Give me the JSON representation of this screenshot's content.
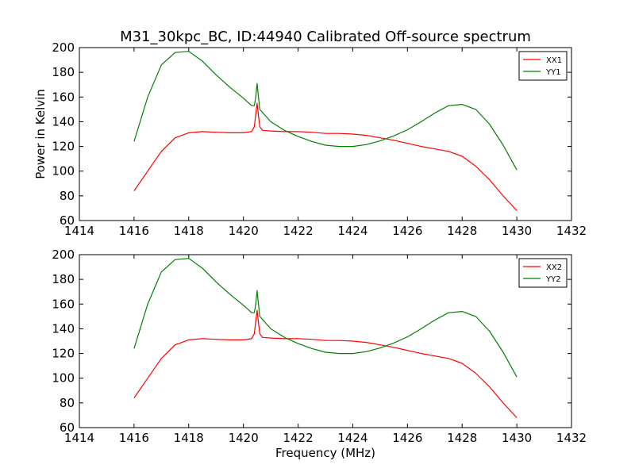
{
  "figure": {
    "title": "M31_30kpc_BC, ID:44940 Calibrated Off-source spectrum"
  },
  "chart_data": [
    {
      "type": "line",
      "title": "M31_30kpc_BC, ID:44940 Calibrated Off-source spectrum",
      "xlabel": "",
      "ylabel": "Power in Kelvin",
      "xlim": [
        1414,
        1432
      ],
      "ylim": [
        60,
        200
      ],
      "xticks": [
        "1414",
        "1416",
        "1418",
        "1420",
        "1422",
        "1424",
        "1426",
        "1428",
        "1430",
        "1432"
      ],
      "yticks": [
        "60",
        "80",
        "100",
        "120",
        "140",
        "160",
        "180",
        "200"
      ],
      "grid": false,
      "legend": "top-right",
      "series": [
        {
          "name": "XX1",
          "color": "#ff0000",
          "x": [
            1416.0,
            1416.5,
            1417.0,
            1417.5,
            1418.0,
            1418.5,
            1419.0,
            1419.5,
            1420.0,
            1420.3,
            1420.4,
            1420.45,
            1420.5,
            1420.55,
            1420.6,
            1420.7,
            1421.0,
            1421.5,
            1422.0,
            1422.5,
            1423.0,
            1423.5,
            1424.0,
            1424.5,
            1425.0,
            1425.5,
            1426.0,
            1426.5,
            1427.0,
            1427.5,
            1428.0,
            1428.5,
            1429.0,
            1429.5,
            1430.0
          ],
          "values": [
            84,
            100,
            116,
            127,
            131,
            132,
            131.5,
            131,
            131,
            132,
            136,
            146,
            155,
            145,
            136,
            133,
            132.5,
            132,
            132,
            131.5,
            130.5,
            130.5,
            130,
            129,
            127,
            125,
            122.5,
            120,
            118,
            116,
            112,
            104,
            93,
            80,
            68
          ]
        },
        {
          "name": "YY1",
          "color": "#008000",
          "x": [
            1416.0,
            1416.5,
            1417.0,
            1417.5,
            1418.0,
            1418.5,
            1419.0,
            1419.5,
            1420.0,
            1420.3,
            1420.4,
            1420.45,
            1420.5,
            1420.55,
            1420.6,
            1420.8,
            1421.0,
            1421.5,
            1422.0,
            1422.5,
            1423.0,
            1423.5,
            1424.0,
            1424.5,
            1425.0,
            1425.5,
            1426.0,
            1426.5,
            1427.0,
            1427.5,
            1428.0,
            1428.5,
            1429.0,
            1429.5,
            1430.0
          ],
          "values": [
            124,
            160,
            186,
            196,
            197,
            189,
            178,
            168,
            159,
            153,
            153,
            160,
            171,
            160,
            150,
            145,
            140,
            133,
            128,
            124,
            121,
            120,
            120,
            121.5,
            124.5,
            128.5,
            133.5,
            140,
            147,
            153,
            154,
            150,
            138,
            121,
            101
          ]
        }
      ]
    },
    {
      "type": "line",
      "title": "",
      "xlabel": "Frequency (MHz)",
      "ylabel": "",
      "xlim": [
        1414,
        1432
      ],
      "ylim": [
        60,
        200
      ],
      "xticks": [
        "1414",
        "1416",
        "1418",
        "1420",
        "1422",
        "1424",
        "1426",
        "1428",
        "1430",
        "1432"
      ],
      "yticks": [
        "60",
        "80",
        "100",
        "120",
        "140",
        "160",
        "180",
        "200"
      ],
      "grid": false,
      "legend": "top-right",
      "series": [
        {
          "name": "XX2",
          "color": "#ff0000",
          "x": [
            1416.0,
            1416.5,
            1417.0,
            1417.5,
            1418.0,
            1418.5,
            1419.0,
            1419.5,
            1420.0,
            1420.3,
            1420.4,
            1420.45,
            1420.5,
            1420.55,
            1420.6,
            1420.7,
            1421.0,
            1421.5,
            1422.0,
            1422.5,
            1423.0,
            1423.5,
            1424.0,
            1424.5,
            1425.0,
            1425.5,
            1426.0,
            1426.5,
            1427.0,
            1427.5,
            1428.0,
            1428.5,
            1429.0,
            1429.5,
            1430.0
          ],
          "values": [
            84,
            100,
            116,
            127,
            131,
            132,
            131.5,
            131,
            131,
            132,
            136,
            146,
            155,
            145,
            136,
            133,
            132.5,
            132,
            132,
            131.5,
            130.5,
            130.5,
            130,
            129,
            127,
            125,
            122.5,
            120,
            118,
            116,
            112,
            104,
            93,
            80,
            68
          ]
        },
        {
          "name": "YY2",
          "color": "#008000",
          "x": [
            1416.0,
            1416.5,
            1417.0,
            1417.5,
            1418.0,
            1418.5,
            1419.0,
            1419.5,
            1420.0,
            1420.3,
            1420.4,
            1420.45,
            1420.5,
            1420.55,
            1420.6,
            1420.8,
            1421.0,
            1421.5,
            1422.0,
            1422.5,
            1423.0,
            1423.5,
            1424.0,
            1424.5,
            1425.0,
            1425.5,
            1426.0,
            1426.5,
            1427.0,
            1427.5,
            1428.0,
            1428.5,
            1429.0,
            1429.5,
            1430.0
          ],
          "values": [
            124,
            160,
            186,
            196,
            197,
            189,
            178,
            168,
            159,
            153,
            153,
            160,
            171,
            160,
            150,
            145,
            140,
            133,
            128,
            124,
            121,
            120,
            120,
            121.5,
            124.5,
            128.5,
            133.5,
            140,
            147,
            153,
            154,
            150,
            138,
            121,
            101
          ]
        }
      ]
    }
  ]
}
